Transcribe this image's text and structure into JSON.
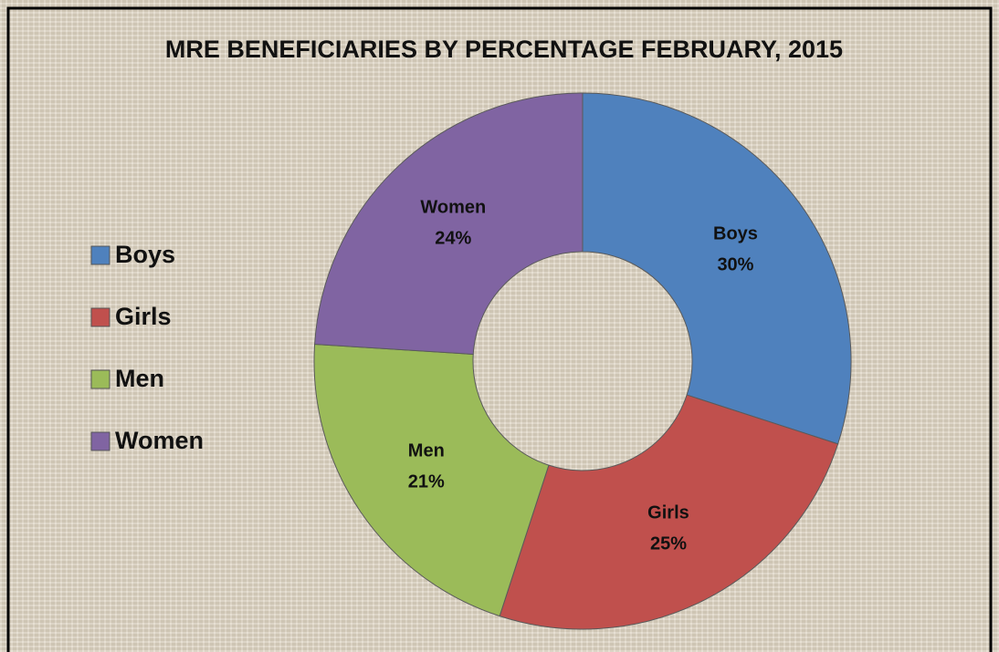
{
  "chart_data": {
    "type": "donut",
    "title": "MRE BENEFICIARIES BY PERCENTAGE FEBRUARY, 2015",
    "categories": [
      "Boys",
      "Girls",
      "Men",
      "Women"
    ],
    "values": [
      30,
      25,
      21,
      24
    ],
    "value_labels": [
      "30%",
      "25%",
      "21%",
      "24%"
    ],
    "colors": [
      "#4f81bd",
      "#c0504d",
      "#9bbb59",
      "#8064a2"
    ],
    "legend": "left"
  }
}
